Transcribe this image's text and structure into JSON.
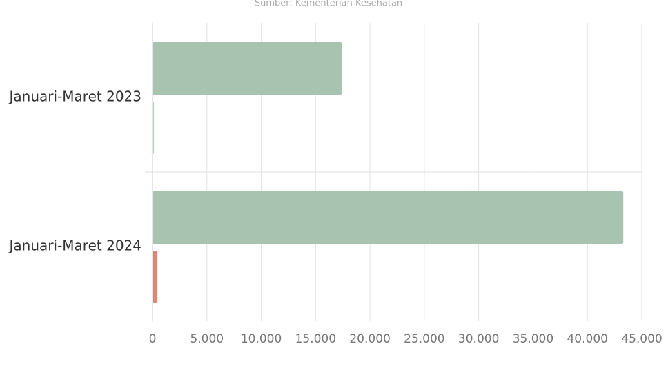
{
  "chart_data": {
    "type": "bar",
    "orientation": "horizontal",
    "subtitle": "Sumber: Kementerian Kesehatan",
    "categories": [
      "Januari-Maret 2023",
      "Januari-Maret 2024"
    ],
    "series": [
      {
        "color": "#a8c4b1",
        "values": [
          17400,
          43300
        ]
      },
      {
        "color": "#e8826e",
        "values": [
          100,
          400
        ]
      }
    ],
    "xlim": [
      0,
      45000
    ],
    "xticks": [
      0,
      {
        "value": 5000,
        "label": "5.000"
      },
      {
        "value": 10000,
        "label": "10.000"
      },
      {
        "value": 15000,
        "label": "15.000"
      },
      {
        "value": 20000,
        "label": "20.000"
      },
      {
        "value": 25000,
        "label": "25.000"
      },
      {
        "value": 30000,
        "label": "30.000"
      },
      {
        "value": 35000,
        "label": "35.000"
      },
      {
        "value": 40000,
        "label": "40.000"
      },
      {
        "value": 45000,
        "label": "45.000"
      }
    ],
    "grid": true
  }
}
